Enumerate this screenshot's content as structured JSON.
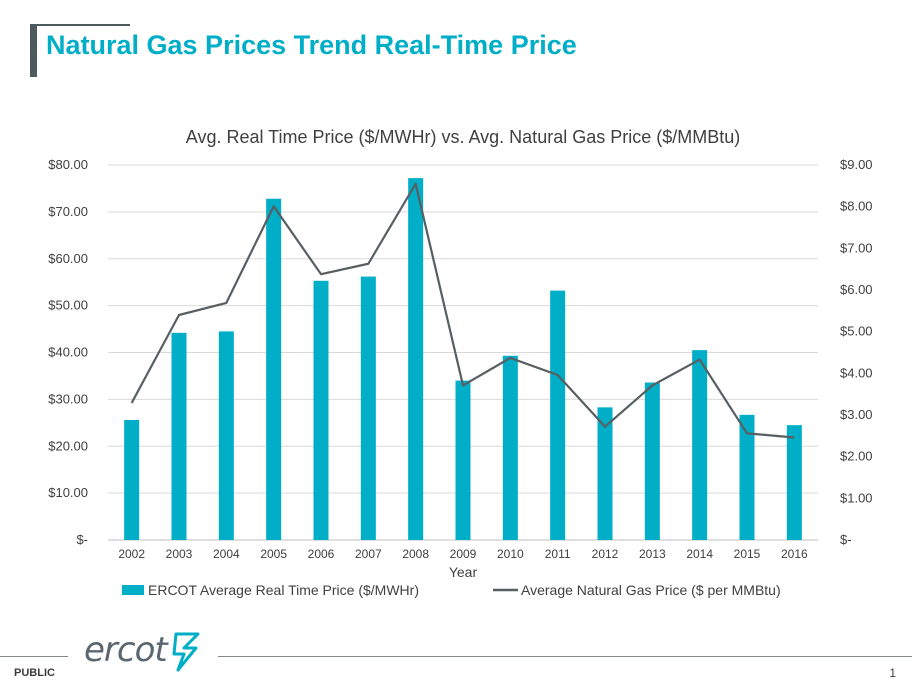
{
  "slide": {
    "title": "Natural Gas Prices Trend Real-Time Price",
    "footer_label": "PUBLIC",
    "page_number": "1",
    "logo_text": "ercot"
  },
  "colors": {
    "accent": "#00aec7",
    "bar": "#00aec7",
    "line": "#575f63",
    "bracket": "#4d5a5e"
  },
  "chart_data": {
    "type": "bar",
    "title": "Avg. Real Time Price ($/MWHr) vs. Avg. Natural Gas Price ($/MMBtu)",
    "xlabel": "Year",
    "ylabel": "",
    "categories": [
      "2002",
      "2003",
      "2004",
      "2005",
      "2006",
      "2007",
      "2008",
      "2009",
      "2010",
      "2011",
      "2012",
      "2013",
      "2014",
      "2015",
      "2016"
    ],
    "series": [
      {
        "name": "ERCOT Average Real Time Price ($/MWHr)",
        "type": "bar",
        "axis": "left",
        "values": [
          25.6,
          44.2,
          44.5,
          72.8,
          55.3,
          56.2,
          77.2,
          34.0,
          39.3,
          53.2,
          28.3,
          33.6,
          40.5,
          26.7,
          24.5
        ]
      },
      {
        "name": "Average Natural Gas Price ($ per MMBtu)",
        "type": "line",
        "axis": "right",
        "values": [
          3.29,
          5.4,
          5.69,
          8.01,
          6.38,
          6.63,
          8.55,
          3.71,
          4.37,
          3.96,
          2.72,
          3.71,
          4.33,
          2.56,
          2.46
        ]
      }
    ],
    "ylim": [
      0,
      80
    ],
    "y2lim": [
      0,
      9
    ],
    "yticks": [
      "$-",
      "$10.00",
      "$20.00",
      "$30.00",
      "$40.00",
      "$50.00",
      "$60.00",
      "$70.00",
      "$80.00"
    ],
    "y2ticks": [
      "$-",
      "$1.00",
      "$2.00",
      "$3.00",
      "$4.00",
      "$5.00",
      "$6.00",
      "$7.00",
      "$8.00",
      "$9.00"
    ],
    "grid": true,
    "legend_position": "bottom"
  }
}
